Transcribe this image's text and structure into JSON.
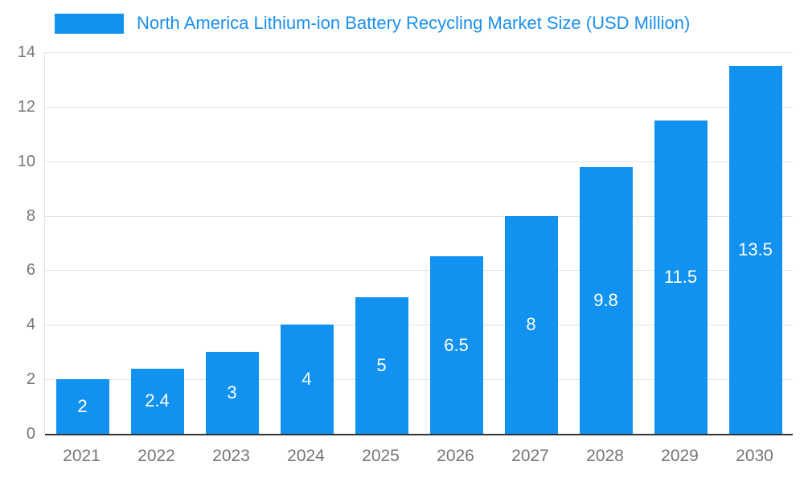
{
  "chart": {
    "title": "North America Lithium-ion Battery Recycling Market Size (USD Million)"
  },
  "chart_data": {
    "type": "bar",
    "title": "North America Lithium-ion Battery Recycling Market Size (USD Million)",
    "categories": [
      "2021",
      "2022",
      "2023",
      "2024",
      "2025",
      "2026",
      "2027",
      "2028",
      "2029",
      "2030"
    ],
    "values": [
      2,
      2.4,
      3,
      4,
      5,
      6.5,
      8,
      9.8,
      11.5,
      13.5
    ],
    "value_labels": [
      "2",
      "2.4",
      "3",
      "4",
      "5",
      "6.5",
      "8",
      "9.8",
      "11.5",
      "13.5"
    ],
    "xlabel": "",
    "ylabel": "",
    "ylim": [
      0,
      14
    ],
    "yticks": [
      0,
      2,
      4,
      6,
      8,
      10,
      12,
      14
    ],
    "grid": true,
    "legend_position": "top-left",
    "colors": {
      "bar": "#1292f0",
      "title": "#1b8fee",
      "axis_text": "#757575",
      "grid": "#e3e3e3",
      "baseline": "#333333",
      "label": "#ffffff",
      "background": "#ffffff"
    }
  }
}
